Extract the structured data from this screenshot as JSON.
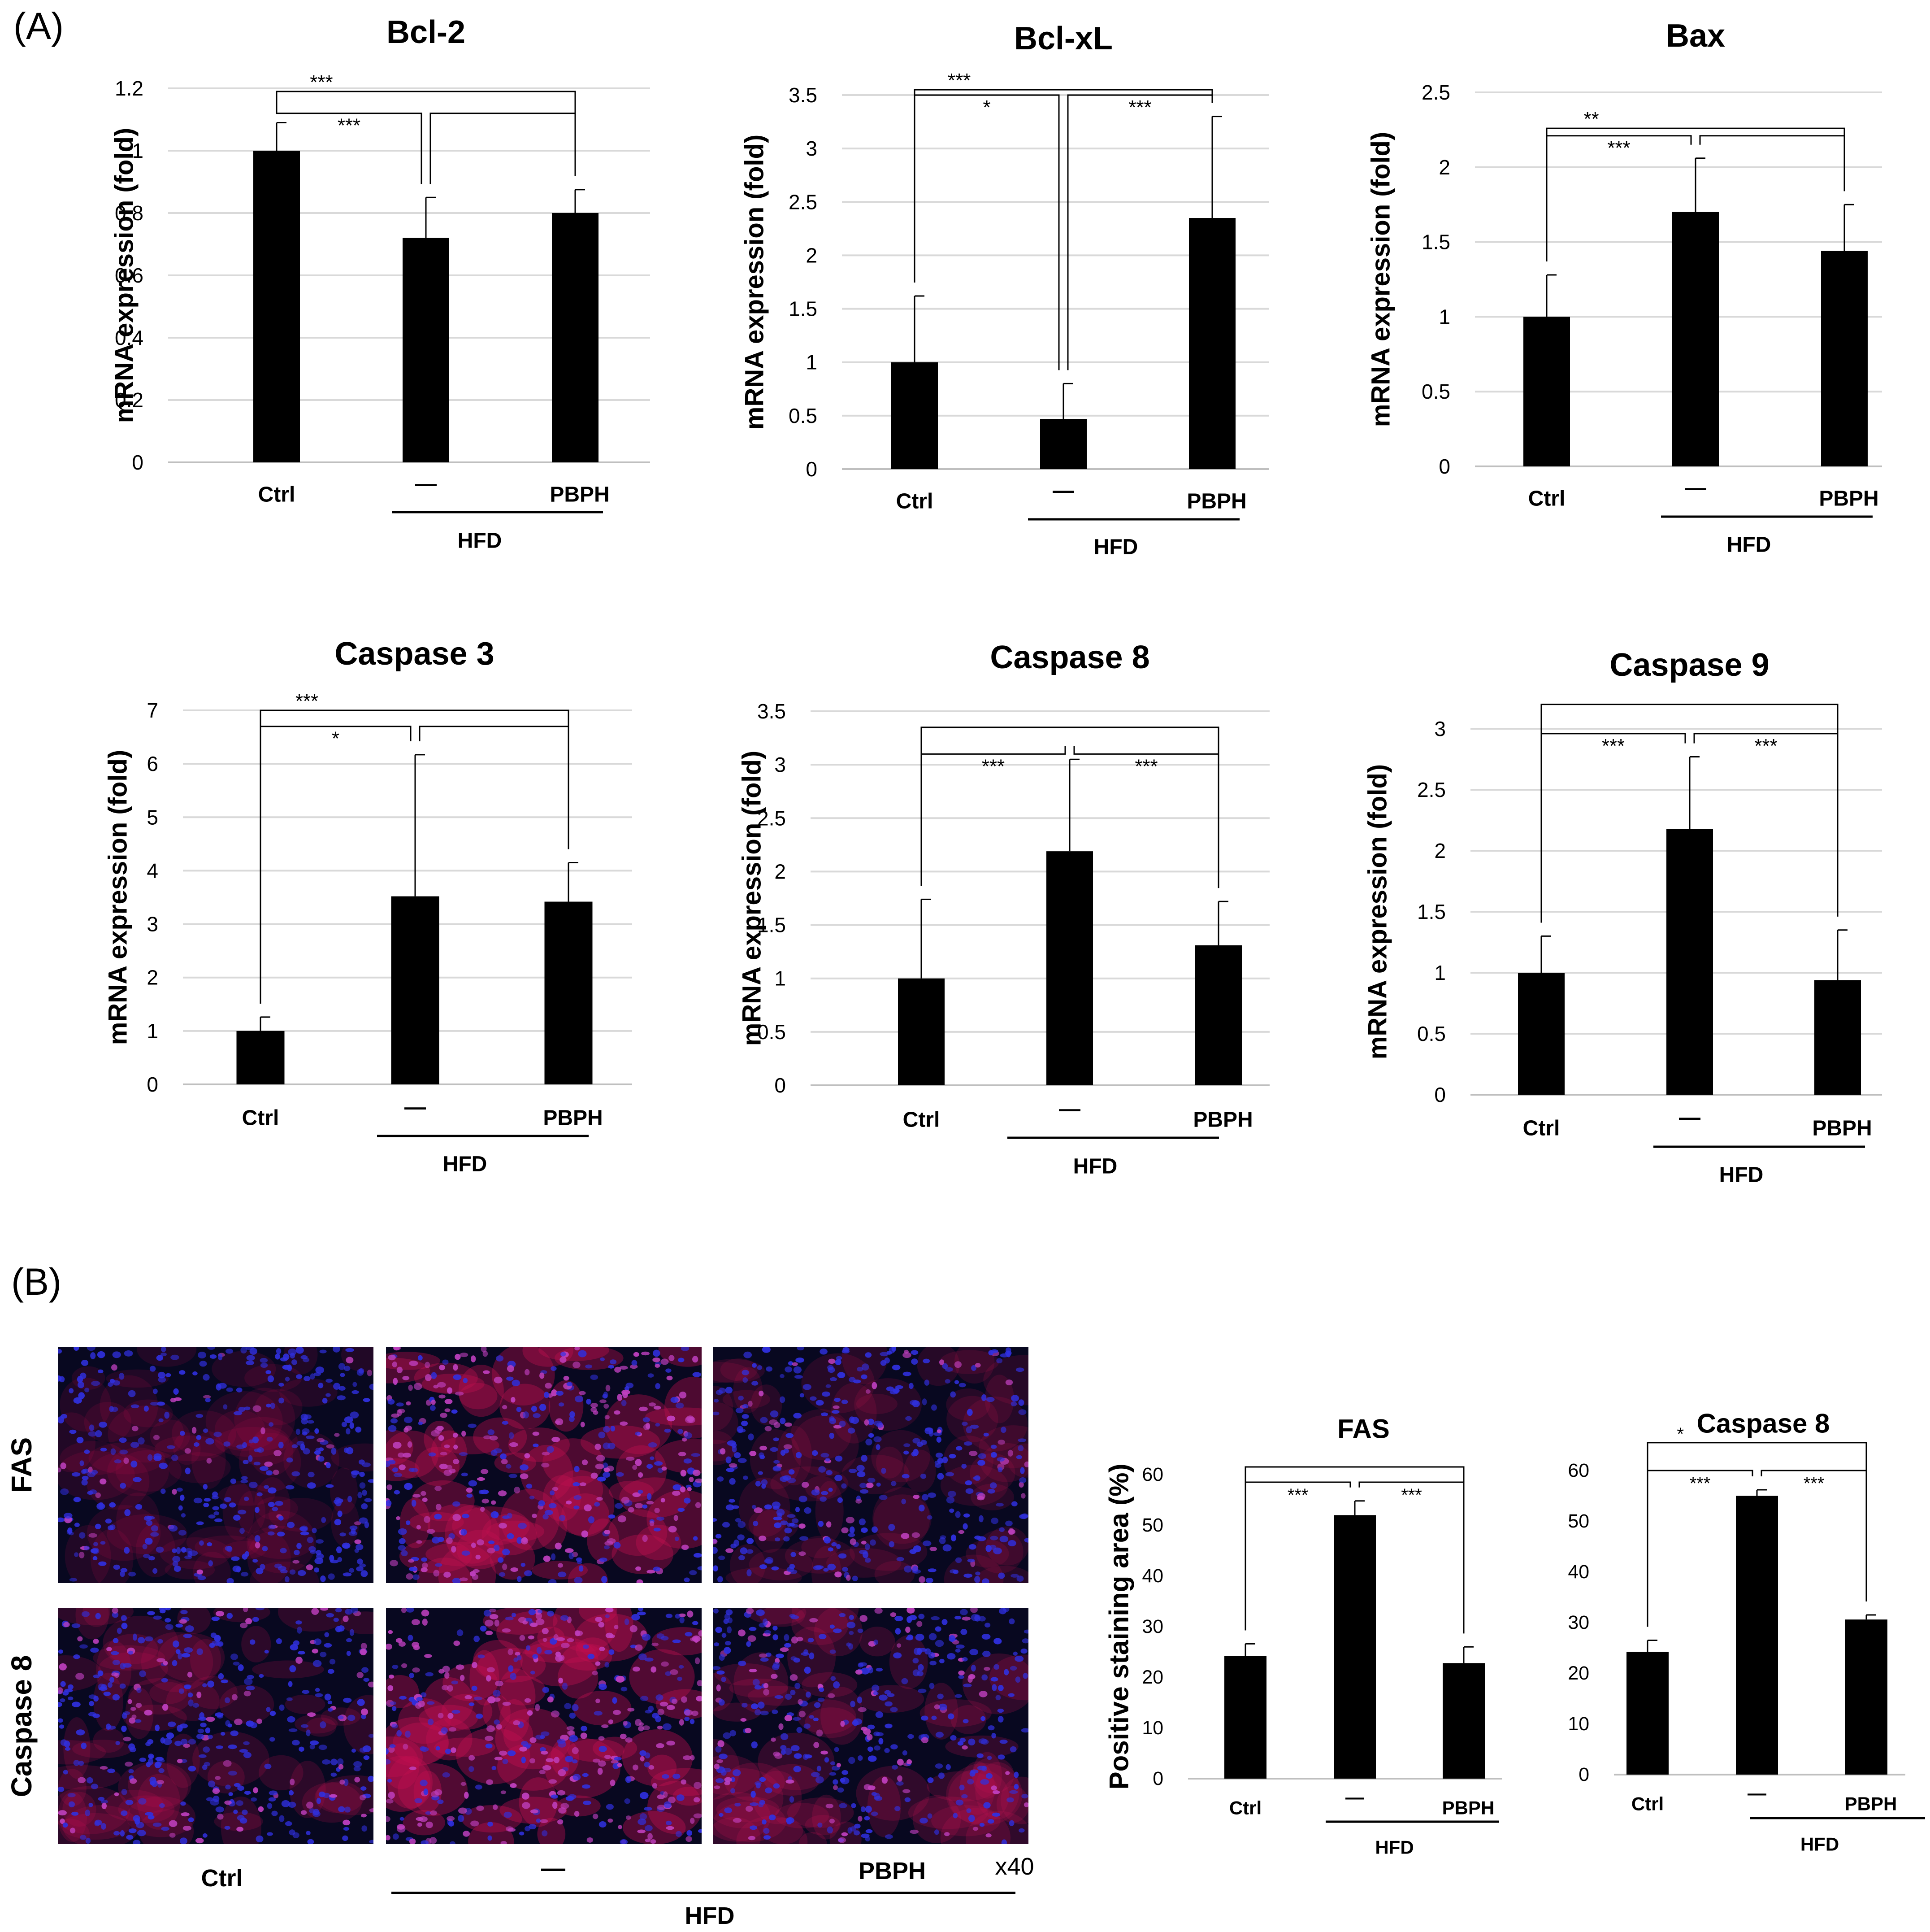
{
  "panel_labels": {
    "a": "(A)",
    "b": "(B)"
  },
  "group_labels": {
    "ctrl": "Ctrl",
    "hfd_only": "—",
    "pbph": "PBPH",
    "hfd": "HFD"
  },
  "images": {
    "row_labels": [
      "FAS",
      "Caspase 8"
    ],
    "magnification": "x40",
    "colors": {
      "nuclei": "#3030e0",
      "stain": "#c01050",
      "background": "#080820"
    },
    "fas_stain_level": [
      0.18,
      0.85,
      0.25
    ],
    "caspase8_stain_level": [
      0.35,
      0.9,
      0.4
    ]
  },
  "colors": {
    "bar": "#000000",
    "grid": "#d9d9d9",
    "axis": "#bfbfbf"
  },
  "chart_data": [
    {
      "type": "bar",
      "title": "Bcl-2",
      "ylabel": "mRNA expression (fold)",
      "categories": [
        "Ctrl",
        "—",
        "PBPH"
      ],
      "group_label": "HFD",
      "values": [
        1.0,
        0.72,
        0.8
      ],
      "errors": [
        0.09,
        0.13,
        0.075
      ],
      "ylim": [
        0,
        1.2
      ],
      "yticks": [
        0,
        0.2,
        0.4,
        0.6,
        0.8,
        1,
        1.2
      ],
      "yticklabels": [
        "0",
        "0.2",
        "0.4",
        "0.6",
        "0.8",
        "1",
        "1.2"
      ],
      "grid": true,
      "significance": [
        {
          "from": 0,
          "to": 2,
          "label": "***",
          "level": 1.19
        },
        {
          "from": 0,
          "to": 1,
          "label": "***",
          "level": 1.12
        },
        {
          "from": 1,
          "to": 2,
          "label": "",
          "level": 1.12
        }
      ]
    },
    {
      "type": "bar",
      "title": "Bcl-xL",
      "ylabel": "mRNA expression (fold)",
      "categories": [
        "Ctrl",
        "—",
        "PBPH"
      ],
      "group_label": "HFD",
      "values": [
        1.0,
        0.47,
        2.35
      ],
      "errors": [
        0.62,
        0.33,
        0.95
      ],
      "ylim": [
        0,
        3.5
      ],
      "yticks": [
        0,
        0.5,
        1,
        1.5,
        2,
        2.5,
        3,
        3.5
      ],
      "yticklabels": [
        "0",
        "0.5",
        "1",
        "1.5",
        "2",
        "2.5",
        "3",
        "3.5"
      ],
      "grid": true,
      "significance": [
        {
          "from": 0,
          "to": 2,
          "label": "***",
          "level": 3.55
        },
        {
          "from": 0,
          "to": 1,
          "label": "*",
          "level": 3.5
        },
        {
          "from": 1,
          "to": 2,
          "label": "***",
          "level": 3.5
        }
      ]
    },
    {
      "type": "bar",
      "title": "Bax",
      "ylabel": "mRNA expression (fold)",
      "categories": [
        "Ctrl",
        "—",
        "PBPH"
      ],
      "group_label": "HFD",
      "values": [
        1.0,
        1.7,
        1.44
      ],
      "errors": [
        0.28,
        0.36,
        0.31
      ],
      "ylim": [
        0,
        2.5
      ],
      "yticks": [
        0,
        0.5,
        1,
        1.5,
        2,
        2.5
      ],
      "yticklabels": [
        "0",
        "0.5",
        "1",
        "1.5",
        "2",
        "2.5"
      ],
      "grid": true,
      "significance": [
        {
          "from": 0,
          "to": 2,
          "label": "**",
          "level": 2.26
        },
        {
          "from": 0,
          "to": 1,
          "label": "***",
          "level": 2.21
        },
        {
          "from": 1,
          "to": 2,
          "label": "",
          "level": 2.21
        }
      ]
    },
    {
      "type": "bar",
      "title": "Caspase 3",
      "ylabel": "mRNA expression (fold)",
      "categories": [
        "Ctrl",
        "—",
        "PBPH"
      ],
      "group_label": "HFD",
      "values": [
        1.0,
        3.52,
        3.42
      ],
      "errors": [
        0.26,
        2.65,
        0.73
      ],
      "ylim": [
        0,
        7
      ],
      "yticks": [
        0,
        1,
        2,
        3,
        4,
        5,
        6,
        7
      ],
      "yticklabels": [
        "0",
        "1",
        "2",
        "3",
        "4",
        "5",
        "6",
        "7"
      ],
      "grid": true,
      "significance": [
        {
          "from": 0,
          "to": 2,
          "label": "***",
          "level": 7.0
        },
        {
          "from": 0,
          "to": 1,
          "label": "*",
          "level": 6.7
        },
        {
          "from": 1,
          "to": 2,
          "label": "",
          "level": 6.7
        }
      ]
    },
    {
      "type": "bar",
      "title": "Caspase 8",
      "ylabel": "mRNA expression (fold)",
      "categories": [
        "Ctrl",
        "—",
        "PBPH"
      ],
      "group_label": "HFD",
      "values": [
        1.0,
        2.19,
        1.31
      ],
      "errors": [
        0.74,
        0.86,
        0.41
      ],
      "ylim": [
        0,
        3.5
      ],
      "yticks": [
        0,
        0.5,
        1,
        1.5,
        2,
        2.5,
        3,
        3.5
      ],
      "yticklabels": [
        "0",
        "0.5",
        "1",
        "1.5",
        "2",
        "2.5",
        "3",
        "3.5"
      ],
      "grid": true,
      "significance": [
        {
          "from": 0,
          "to": 2,
          "label": "",
          "level": 3.35
        },
        {
          "from": 0,
          "to": 1,
          "label": "***",
          "level": 3.1
        },
        {
          "from": 1,
          "to": 2,
          "label": "***",
          "level": 3.1
        }
      ]
    },
    {
      "type": "bar",
      "title": "Caspase 9",
      "ylabel": "mRNA expression (fold)",
      "categories": [
        "Ctrl",
        "—",
        "PBPH"
      ],
      "group_label": "HFD",
      "values": [
        1.0,
        2.18,
        0.94
      ],
      "errors": [
        0.3,
        0.59,
        0.41
      ],
      "ylim": [
        0,
        3
      ],
      "yticks": [
        0,
        0.5,
        1,
        1.5,
        2,
        2.5,
        3
      ],
      "yticklabels": [
        "0",
        "0.5",
        "1",
        "1.5",
        "2",
        "2.5",
        "3"
      ],
      "grid": true,
      "significance": [
        {
          "from": 0,
          "to": 2,
          "label": "",
          "level": 3.2
        },
        {
          "from": 0,
          "to": 1,
          "label": "***",
          "level": 2.96
        },
        {
          "from": 1,
          "to": 2,
          "label": "***",
          "level": 2.96
        }
      ]
    },
    {
      "type": "bar",
      "title": "FAS",
      "ylabel": "Positive staining area (%)",
      "categories": [
        "Ctrl",
        "—",
        "PBPH"
      ],
      "group_label": "HFD",
      "values": [
        24.2,
        52.0,
        22.8
      ],
      "errors": [
        2.4,
        2.8,
        3.2
      ],
      "ylim": [
        0,
        60
      ],
      "yticks": [
        0,
        10,
        20,
        30,
        40,
        50,
        60
      ],
      "yticklabels": [
        "0",
        "10",
        "20",
        "30",
        "40",
        "50",
        "60"
      ],
      "grid": false,
      "significance": [
        {
          "from": 0,
          "to": 2,
          "label": "",
          "level": 61.5
        },
        {
          "from": 0,
          "to": 1,
          "label": "***",
          "level": 58.5
        },
        {
          "from": 1,
          "to": 2,
          "label": "***",
          "level": 58.5
        }
      ]
    },
    {
      "type": "bar",
      "title": "Caspase 8",
      "ylabel": "",
      "categories": [
        "Ctrl",
        "—",
        "PBPH"
      ],
      "group_label": "HFD",
      "values": [
        24.2,
        55.0,
        30.6
      ],
      "errors": [
        2.3,
        1.2,
        0.9
      ],
      "ylim": [
        0,
        60
      ],
      "yticks": [
        0,
        10,
        20,
        30,
        40,
        50,
        60
      ],
      "yticklabels": [
        "0",
        "10",
        "20",
        "30",
        "40",
        "50",
        "60"
      ],
      "grid": false,
      "significance": [
        {
          "from": 0,
          "to": 2,
          "label": "*",
          "level": 65.5
        },
        {
          "from": 0,
          "to": 1,
          "label": "***",
          "level": 60.0
        },
        {
          "from": 1,
          "to": 2,
          "label": "***",
          "level": 60.0
        }
      ]
    }
  ]
}
